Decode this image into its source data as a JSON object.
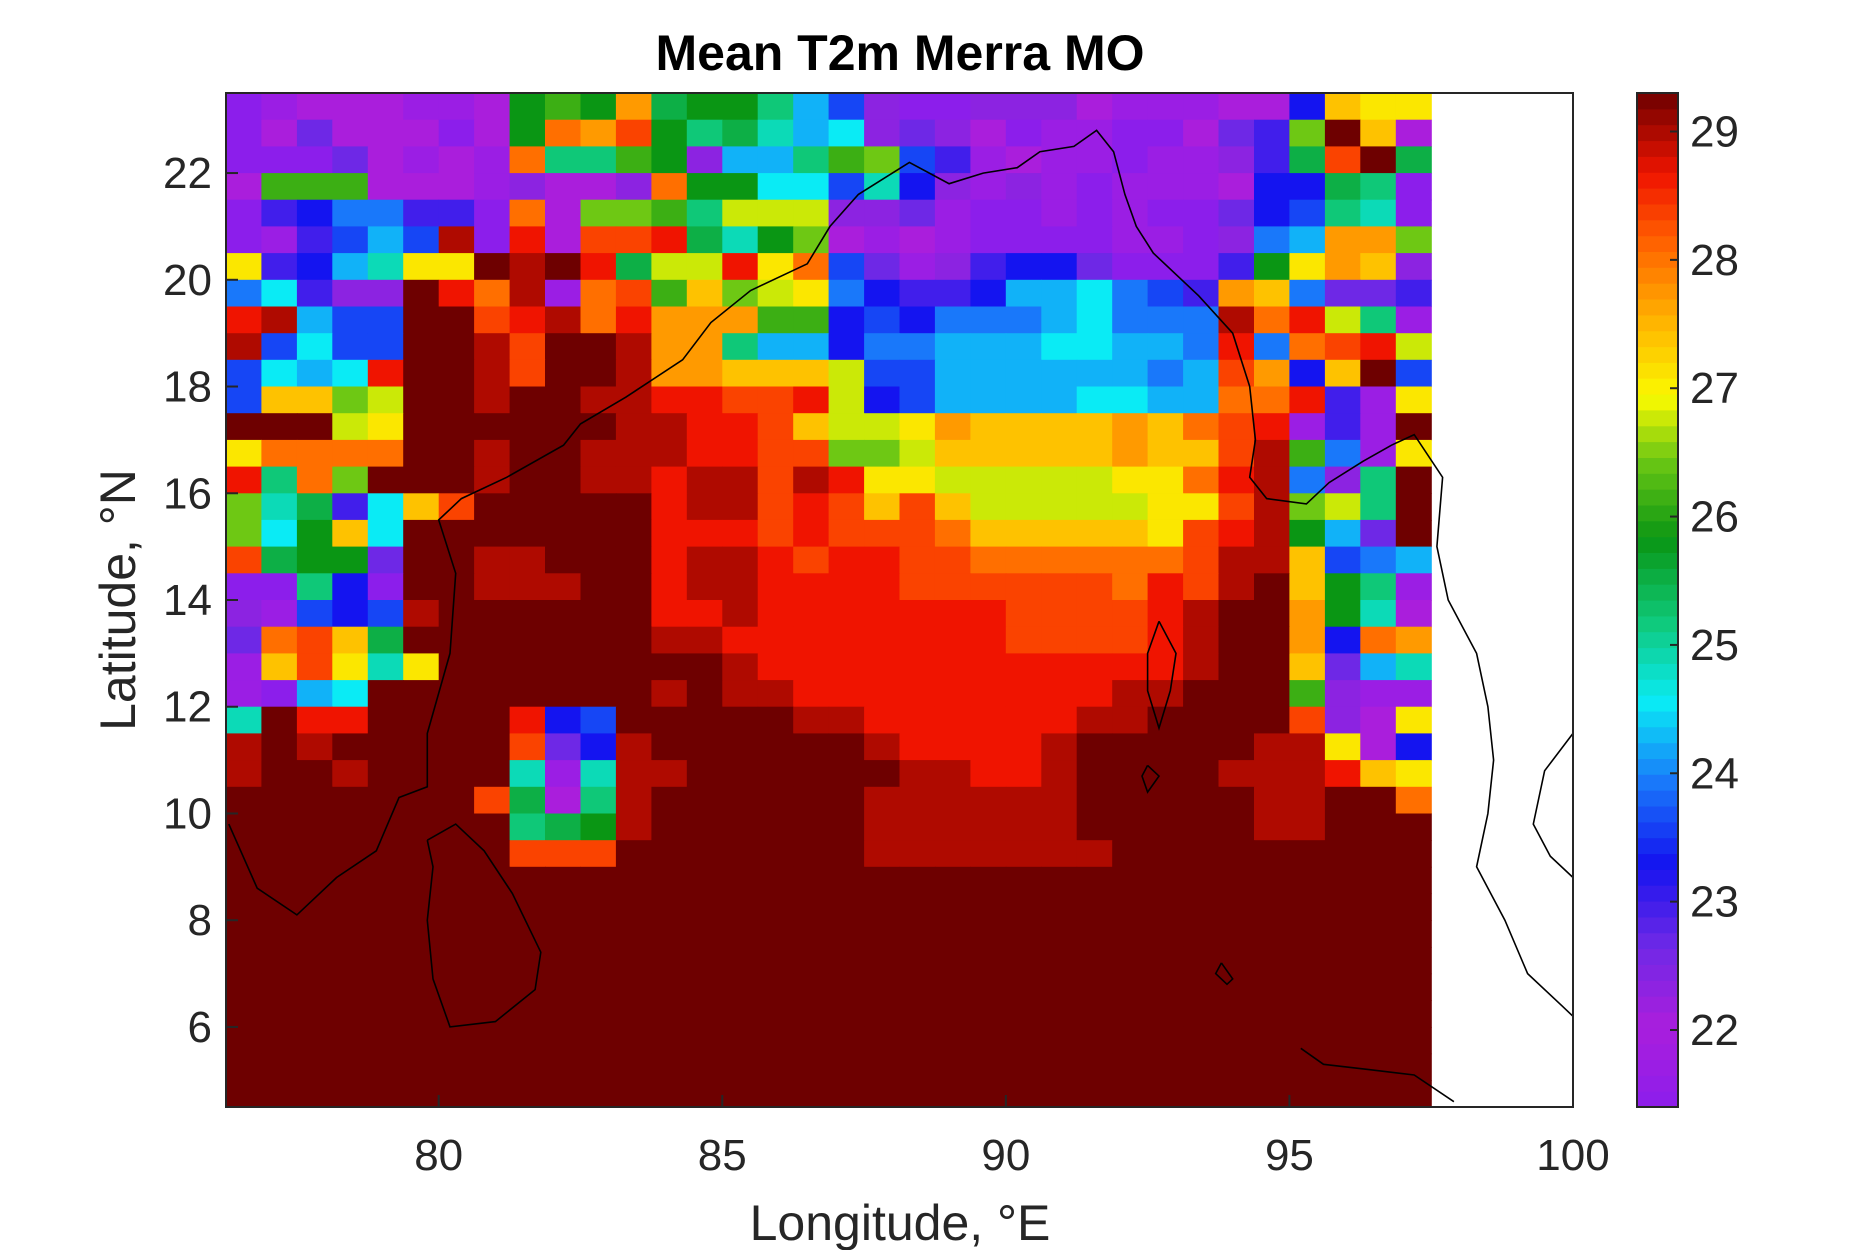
{
  "chart_data": {
    "type": "heatmap",
    "title": "Mean T2m Merra MO",
    "xlabel": "Longitude, °E",
    "ylabel": "Latitude, °N",
    "xlim": [
      76.25,
      100
    ],
    "ylim": [
      4.5,
      23.5
    ],
    "xticks": [
      80,
      85,
      90,
      95,
      100
    ],
    "yticks": [
      6,
      8,
      10,
      12,
      14,
      16,
      18,
      20,
      22
    ],
    "colorbar": {
      "colormap": "jet-like",
      "range": [
        21.4,
        29.3
      ],
      "ticks": [
        22,
        23,
        24,
        25,
        26,
        27,
        28,
        29
      ]
    },
    "grid_resolution": {
      "dlon": 0.625,
      "dlat": 0.5
    },
    "value_rows_lat_descending": [
      "ABCCCBBCOPOUNOOMJHDAADDDCBBBCCGTSS",
      "ACECCCACOVUWOMNLJKDEDCABBAACEFQZTC",
      "AAAECBCBVMMPODJJMPQHFBCBBABBDFNWZN",
      "CPPPCCCBDCCDVOOKKHLGDBDBABBBCGGNMA",
      "AFGIIFFAVCQQPMRRRDDEBAABABAAEGHMLA",
      "ABFHJHYAXCWWXNLOQCBCBAAAABBADIJUUQ",
      "SFGJLSSZYZXNRRXSVHEBDFGGEAAAFOSUTD",
      "IKFDDZXVYBVWPTQRSIGFFGJJKIHFUTIEEF",
      "XYJHHZZWXYVXUUUPPGHGIIIJKIIIYVXRMB",
      "YHKHHZZYWZZYUUMJJGIIJJJKKJJIXIVWXR",
      "HKJKXZZYWZZYUUTTTRHHJJJJJJIJWUGTZH",
      "HTTQRZZYZZYYXXWWXRGHJJJJKKJJVVXFBS",
      "ZZZRSZZZZZZYYXXWTRRSUTTTTUTVWXBFBZ",
      "SVVVVZZYZZYYYXXWWQQRTTTTTUTTWYPIBS",
      "XMVQZZZYZZYYXYYWYXSSRRRRRSSVXYIDMZ",
      "QLNFKTWZZZZZXYYWXWTWTRRRRRSSWYQRMZ",
      "QKOTKZZZZZZZXXXWXWWWVTTTTTSWXYOJEZ",
      "WNOOEZZYYZZZXYYXWXXWWVVVVVVWYYTHIJ",
      "AAMGAZZYYYZZXYYXXXXWWWWWWVXWYZTOMB",
      "DBHGHYZZZZZZXXYXXXXXXXWWWWXYZZUOLC",
      "EVWTNZZZZZZZYYXXXXXXXXWWWWXYZZUGVU",
      "BTWSLSZZZZZZZZYXXXXXXXXXXXXYZZTEJL",
      "BAJKZZZZZZZZYZYYXXXXXXXXXYYZZZPDBB",
      "LZXXZZZZXGHZZZZZYYXXXXXXYYZZZZWDCS",
      "YZYZZZZZWEGYZZZZZZYXXXXYZZZZZYYSCG",
      "YZZYZZZZLBLYYZZZZZZYYXXYZZZZYYYXTS",
      "ZZZZZZZWNCMYZZZZZZYYYYYYZZZZZYYZZV",
      "ZZZZZZZZMNOYZZZZZZYYYYYYZZZZZYYZZZ",
      "ZZZZZZZZWWWZZZZZZZYYYYYYYZZZZZZZZZ",
      "ZZZZZZZZZZZZZZZZZZZZZZZZZZZZZZZZZZ",
      "ZZZZZZZZZZZZZZZZZZZZZZZZZZZZZZZZZZ",
      "ZZZZZZZZZZZZZZZZZZZZZZZZZZZZZZZZZZ",
      "ZZZZZZZZZZZZZZZZZZZZZZZZZZZZZZZZZZ",
      "ZZZZZZZZZZZZZZZZZZZZZZZZZZZZZZZZZZ",
      "ZZZZZZZZZZZZZZZZZZZZZZZZZZZZZZZZZZ",
      "ZZZZZZZZZZZZZZZZZZZZZZZZZZZZZZZZZZ",
      "ZZZZZZZZZZZZZZZZZZZZZZZZZZZZZZZZZZ",
      "ZZZZZZZZZZZZZZZZZZZZZZZZZZZZZZZZZZ"
    ]
  }
}
